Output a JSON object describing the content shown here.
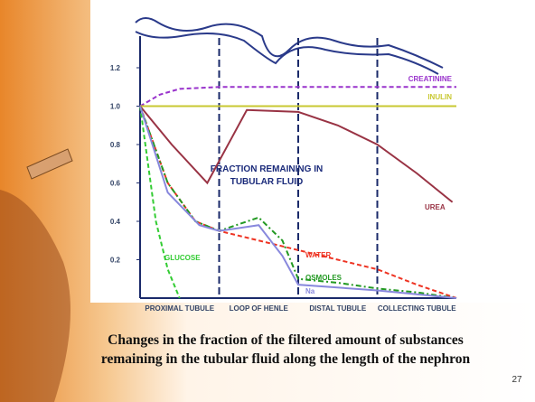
{
  "chart_data": {
    "type": "line",
    "annotation": [
      "FRACTION REMAINING IN",
      "TUBULAR FLUID"
    ],
    "categories": [
      "PROXIMAL TUBULE",
      "LOOP OF HENLE",
      "DISTAL TUBULE",
      "COLLECTING TUBULE"
    ],
    "xlim": [
      0,
      4
    ],
    "ylim": [
      0,
      1.2
    ],
    "yticks": [
      0.2,
      0.4,
      0.6,
      0.8,
      {
        "value": 1,
        "label": "1.0"
      },
      1.2
    ],
    "series": [
      {
        "name": "CREATININE",
        "color": "#9933cc",
        "style": "dashed",
        "x": [
          0,
          0.25,
          0.5,
          1,
          4
        ],
        "values": [
          1.0,
          1.06,
          1.09,
          1.1,
          1.1
        ]
      },
      {
        "name": "INULIN",
        "color": "#c8c832",
        "style": "solid",
        "x": [
          0,
          4
        ],
        "values": [
          1.0,
          1.0
        ]
      },
      {
        "name": "UREA",
        "color": "#993344",
        "style": "solid",
        "x": [
          0,
          0.4,
          0.85,
          1.35,
          2,
          2.5,
          3,
          3.5,
          3.95
        ],
        "values": [
          1.0,
          0.8,
          0.6,
          0.98,
          0.97,
          0.9,
          0.8,
          0.65,
          0.5
        ]
      },
      {
        "name": "GLUCOSE",
        "color": "#33cc33",
        "style": "dashed",
        "x": [
          0,
          0.1,
          0.2,
          0.35,
          0.5
        ],
        "values": [
          1.0,
          0.7,
          0.4,
          0.15,
          0
        ]
      },
      {
        "name": "WATER",
        "color": "#ee3322",
        "style": "dashed",
        "x": [
          0,
          0.35,
          0.7,
          1,
          1.5,
          2,
          2.5,
          3,
          3.5,
          4
        ],
        "values": [
          1.0,
          0.6,
          0.4,
          0.35,
          0.3,
          0.25,
          0.2,
          0.15,
          0.07,
          0
        ]
      },
      {
        "name": "OSMOLES",
        "color": "#229922",
        "style": "dashdot",
        "x": [
          0,
          0.35,
          0.7,
          1,
          1.5,
          1.8,
          2,
          2.5,
          3,
          3.5,
          4
        ],
        "values": [
          1.0,
          0.6,
          0.4,
          0.35,
          0.42,
          0.3,
          0.1,
          0.08,
          0.05,
          0.03,
          0
        ]
      },
      {
        "name": "Na",
        "color": "#8888dd",
        "style": "solid",
        "x": [
          0,
          0.35,
          0.75,
          1,
          1.5,
          1.8,
          2,
          3,
          4
        ],
        "values": [
          1.0,
          0.55,
          0.38,
          0.35,
          0.38,
          0.22,
          0.07,
          0.04,
          0
        ]
      }
    ]
  },
  "caption": [
    "Changes in the fraction of the filtered amount of substances",
    "remaining in the tubular fluid along the length of the nephron"
  ],
  "page_number": "27"
}
